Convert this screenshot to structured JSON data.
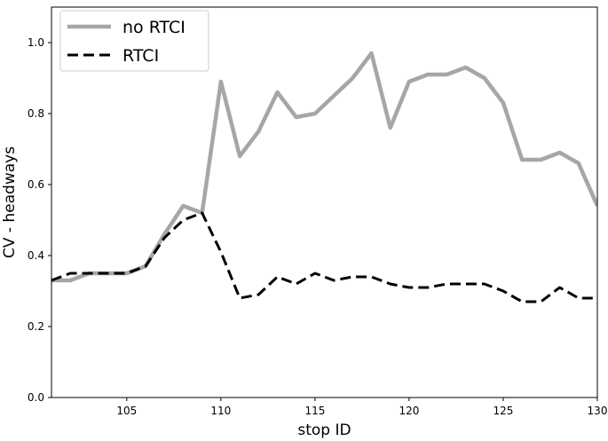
{
  "chart_data": {
    "type": "line",
    "title": "",
    "xlabel": "stop ID",
    "ylabel": "CV - headways",
    "xlim": [
      101,
      130
    ],
    "ylim": [
      0.0,
      1.1
    ],
    "xticks": [
      105,
      110,
      115,
      120,
      125,
      130
    ],
    "yticks": [
      0.0,
      0.2,
      0.4,
      0.6,
      0.8,
      1.0
    ],
    "grid": false,
    "legend": "top-left",
    "x": [
      101,
      102,
      103,
      104,
      105,
      106,
      107,
      108,
      109,
      110,
      111,
      112,
      113,
      114,
      115,
      116,
      117,
      118,
      119,
      120,
      121,
      122,
      123,
      124,
      125,
      126,
      127,
      128,
      129,
      130
    ],
    "series": [
      {
        "name": "no RTCI",
        "color": "#a6a6a6",
        "style": "solid",
        "values": [
          0.33,
          0.33,
          0.35,
          0.35,
          0.35,
          0.37,
          0.46,
          0.54,
          0.52,
          0.89,
          0.68,
          0.75,
          0.86,
          0.79,
          0.8,
          0.85,
          0.9,
          0.97,
          0.76,
          0.89,
          0.91,
          0.91,
          0.93,
          0.9,
          0.83,
          0.67,
          0.67,
          0.69,
          0.66,
          0.54
        ]
      },
      {
        "name": "RTCI",
        "color": "#000000",
        "style": "dashed",
        "values": [
          0.33,
          0.35,
          0.35,
          0.35,
          0.35,
          0.37,
          0.45,
          0.5,
          0.52,
          0.41,
          0.28,
          0.29,
          0.34,
          0.32,
          0.35,
          0.33,
          0.34,
          0.34,
          0.32,
          0.31,
          0.31,
          0.32,
          0.32,
          0.32,
          0.3,
          0.27,
          0.27,
          0.31,
          0.28,
          0.28
        ]
      }
    ]
  }
}
